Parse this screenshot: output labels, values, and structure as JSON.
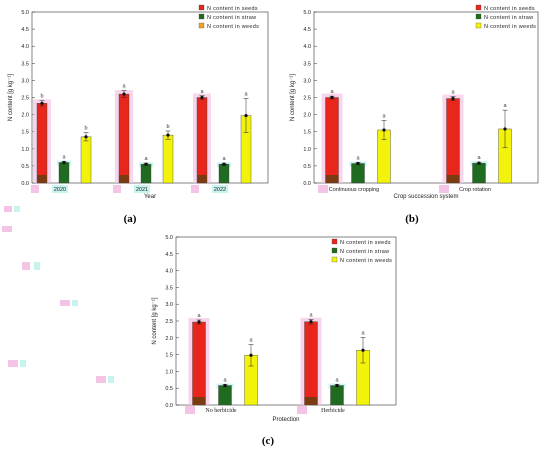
{
  "colors": {
    "seeds": "#e8261b",
    "seeds_base": "#7a3b12",
    "straw": "#1f6b1f",
    "weeds": "#f2f20a",
    "weeds_legend_a": "#f4a020",
    "highlight_pink": "#f4c4e6",
    "highlight_cyan": "#c8f4f0"
  },
  "chart_data": [
    {
      "type": "bar",
      "panel": "(a)",
      "xlabel": "Year",
      "ylabel": "N content [g kg⁻¹]",
      "ylim": [
        0,
        5
      ],
      "yticks": [
        "0.0",
        "0.5",
        "1.0",
        "1.5",
        "2.0",
        "2.5",
        "3.0",
        "3.5",
        "4.0",
        "4.5",
        "5.0"
      ],
      "categories": [
        "2020",
        "2021",
        "2022"
      ],
      "legend": [
        "N content in seeds",
        "N content in straw",
        "N content in weeds"
      ],
      "series": [
        {
          "name": "N content in seeds",
          "values": [
            2.33,
            2.6,
            2.5
          ],
          "errors": [
            0.08,
            0.1,
            0.05
          ],
          "labels": [
            "b",
            "a",
            "a"
          ]
        },
        {
          "name": "N content in straw",
          "values": [
            0.6,
            0.55,
            0.55
          ],
          "errors": [
            0.03,
            0.03,
            0.03
          ],
          "labels": [
            "a",
            "a",
            "a"
          ]
        },
        {
          "name": "N content in weeds",
          "values": [
            1.35,
            1.4,
            1.97
          ],
          "errors": [
            0.12,
            0.12,
            0.5
          ],
          "labels": [
            "b",
            "b",
            "a"
          ]
        }
      ]
    },
    {
      "type": "bar",
      "panel": "(b)",
      "xlabel": "Crop succession system",
      "ylabel": "N content [g kg⁻¹]",
      "ylim": [
        0,
        5
      ],
      "yticks": [
        "0.0",
        "0.5",
        "1.0",
        "1.5",
        "2.0",
        "2.5",
        "3.0",
        "3.5",
        "4.0",
        "4.5",
        "5.0"
      ],
      "categories": [
        "Continuous cropping",
        "Crop rotation"
      ],
      "legend": [
        "N content in seeds",
        "N content in straw",
        "N content in weeds"
      ],
      "series": [
        {
          "name": "N content in seeds",
          "values": [
            2.5,
            2.47
          ],
          "errors": [
            0.04,
            0.06
          ],
          "labels": [
            "a",
            "a"
          ]
        },
        {
          "name": "N content in straw",
          "values": [
            0.57,
            0.58
          ],
          "errors": [
            0.03,
            0.03
          ],
          "labels": [
            "a",
            "a"
          ]
        },
        {
          "name": "N content in weeds",
          "values": [
            1.55,
            1.58
          ],
          "errors": [
            0.28,
            0.55
          ],
          "labels": [
            "a",
            "a"
          ]
        }
      ]
    },
    {
      "type": "bar",
      "panel": "(c)",
      "xlabel": "Protection",
      "ylabel": "N content [g kg⁻¹]",
      "ylim": [
        0,
        5
      ],
      "yticks": [
        "0.0",
        "0.5",
        "1.0",
        "1.5",
        "2.0",
        "2.5",
        "3.0",
        "3.5",
        "4.0",
        "4.5",
        "5.0"
      ],
      "categories": [
        "No herbicide",
        "Herbicide"
      ],
      "legend": [
        "N content in seeds",
        "N content in straw",
        "N content in weeds"
      ],
      "series": [
        {
          "name": "N content in seeds",
          "values": [
            2.47,
            2.48
          ],
          "errors": [
            0.06,
            0.07
          ],
          "labels": [
            "a",
            "a"
          ]
        },
        {
          "name": "N content in straw",
          "values": [
            0.58,
            0.58
          ],
          "errors": [
            0.03,
            0.03
          ],
          "labels": [
            "a",
            "a"
          ]
        },
        {
          "name": "N content in weeds",
          "values": [
            1.48,
            1.63
          ],
          "errors": [
            0.32,
            0.38
          ],
          "labels": [
            "a",
            "a"
          ]
        }
      ]
    }
  ]
}
